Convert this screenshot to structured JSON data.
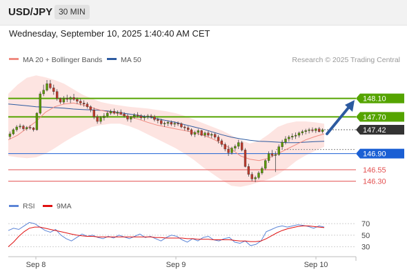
{
  "header": {
    "symbol": "USD/JPY",
    "timeframe": "30 MIN"
  },
  "timestamp": "Wednesday, September 10, 2025 1:40:40 AM CET",
  "legend": {
    "main": [
      {
        "label": "MA 20 + Bollinger Bands",
        "color": "#f08a80"
      },
      {
        "label": "MA 50",
        "color": "#2c5aa0"
      }
    ],
    "rsi": [
      {
        "label": "RSI",
        "color": "#5b84d6"
      },
      {
        "label": "9MA",
        "color": "#e01010"
      }
    ]
  },
  "credit": "Research © 2025 Trading Central",
  "colors": {
    "green": "#55a400",
    "blue": "#1a5fd4",
    "red": "#e35050",
    "arrow": "#2c5aa0",
    "up": "#5a9a00",
    "down": "#c0392b",
    "band": "#fde4e1"
  },
  "chart_data": {
    "type": "candlestick",
    "ylim": [
      146.04,
      148.74
    ],
    "xticks": [
      "Sep 8",
      "Sep 9",
      "Sep 10"
    ],
    "levels": [
      {
        "label": "148.10",
        "value": 148.1,
        "kind": "resistance"
      },
      {
        "label": "147.70",
        "value": 147.7,
        "kind": "resistance"
      },
      {
        "label": "147.42",
        "value": 147.42,
        "kind": "current"
      },
      {
        "label": "146.90",
        "value": 146.9,
        "kind": "support"
      },
      {
        "label": "146.55",
        "value": 146.55,
        "kind": "support"
      },
      {
        "label": "146.30",
        "value": 146.3,
        "kind": "support"
      }
    ],
    "ma20": [
      147.2,
      147.3,
      147.45,
      147.6,
      147.8,
      147.92,
      147.98,
      148.0,
      147.96,
      147.9,
      147.84,
      147.8,
      147.76,
      147.7,
      147.65,
      147.58,
      147.52,
      147.48,
      147.44,
      147.4,
      147.36,
      147.3,
      147.22,
      147.12,
      147.0,
      146.85,
      146.78,
      146.75,
      146.8,
      146.9,
      147.0,
      147.1,
      147.2,
      147.27,
      147.33
    ],
    "ma50": [
      147.98,
      147.96,
      147.94,
      147.92,
      147.91,
      147.9,
      147.89,
      147.87,
      147.86,
      147.85,
      147.84,
      147.82,
      147.79,
      147.76,
      147.73,
      147.7,
      147.66,
      147.62,
      147.58,
      147.53,
      147.48,
      147.43,
      147.37,
      147.31,
      147.26,
      147.22,
      147.19,
      147.17,
      147.16,
      147.15,
      147.14,
      147.14,
      147.15,
      147.16,
      147.17
    ],
    "bb_upper": [
      148.2,
      148.4,
      148.55,
      148.6,
      148.56,
      148.5,
      148.42,
      148.3,
      148.18,
      148.1,
      148.02,
      147.98,
      147.95,
      147.92,
      147.9,
      147.88,
      147.85,
      147.82,
      147.78,
      147.72,
      147.64,
      147.56,
      147.48,
      147.4,
      147.3,
      147.2,
      147.12,
      147.18,
      147.32,
      147.48,
      147.56,
      147.6,
      147.6,
      147.58,
      147.55
    ],
    "bb_lower": [
      146.85,
      146.82,
      146.8,
      146.82,
      146.9,
      147.02,
      147.15,
      147.27,
      147.38,
      147.48,
      147.52,
      147.55,
      147.55,
      147.5,
      147.42,
      147.32,
      147.22,
      147.12,
      147.02,
      146.9,
      146.76,
      146.6,
      146.46,
      146.32,
      146.2,
      146.18,
      146.22,
      146.28,
      146.34,
      146.44,
      146.58,
      146.74,
      146.86,
      146.96,
      147.05
    ],
    "ohlc": [
      [
        147.27,
        147.38,
        147.22,
        147.33
      ],
      [
        147.33,
        147.45,
        147.3,
        147.42
      ],
      [
        147.42,
        147.52,
        147.38,
        147.48
      ],
      [
        147.48,
        147.55,
        147.44,
        147.5
      ],
      [
        147.5,
        147.53,
        147.4,
        147.44
      ],
      [
        147.44,
        147.5,
        147.4,
        147.47
      ],
      [
        147.47,
        147.52,
        147.42,
        147.46
      ],
      [
        147.46,
        147.48,
        147.38,
        147.42
      ],
      [
        147.42,
        147.8,
        147.4,
        147.78
      ],
      [
        147.78,
        148.25,
        147.75,
        148.2
      ],
      [
        148.2,
        148.4,
        148.15,
        148.28
      ],
      [
        148.28,
        148.5,
        148.25,
        148.42
      ],
      [
        148.42,
        148.5,
        148.3,
        148.33
      ],
      [
        148.33,
        148.4,
        148.18,
        148.25
      ],
      [
        148.25,
        148.3,
        148.05,
        148.1
      ],
      [
        148.1,
        148.12,
        147.98,
        148.02
      ],
      [
        148.02,
        148.15,
        147.98,
        148.1
      ],
      [
        148.1,
        148.18,
        148.02,
        148.08
      ],
      [
        148.08,
        148.15,
        148.0,
        148.12
      ],
      [
        148.12,
        148.2,
        148.05,
        148.08
      ],
      [
        148.08,
        148.12,
        147.98,
        148.04
      ],
      [
        148.04,
        148.1,
        147.95,
        148.0
      ],
      [
        148.0,
        148.06,
        147.92,
        147.98
      ],
      [
        147.98,
        148.02,
        147.88,
        147.92
      ],
      [
        147.92,
        147.95,
        147.8,
        147.85
      ],
      [
        147.85,
        147.9,
        147.65,
        147.7
      ],
      [
        147.7,
        147.75,
        147.55,
        147.6
      ],
      [
        147.6,
        147.72,
        147.55,
        147.68
      ],
      [
        147.68,
        147.78,
        147.62,
        147.72
      ],
      [
        147.72,
        147.82,
        147.68,
        147.78
      ],
      [
        147.78,
        147.86,
        147.74,
        147.82
      ],
      [
        147.82,
        147.88,
        147.75,
        147.78
      ],
      [
        147.78,
        147.84,
        147.72,
        147.8
      ],
      [
        147.8,
        147.86,
        147.74,
        147.76
      ],
      [
        147.76,
        147.8,
        147.68,
        147.72
      ],
      [
        147.72,
        147.76,
        147.6,
        147.65
      ],
      [
        147.65,
        147.72,
        147.58,
        147.7
      ],
      [
        147.7,
        147.78,
        147.66,
        147.74
      ],
      [
        147.74,
        147.8,
        147.68,
        147.72
      ],
      [
        147.72,
        147.76,
        147.64,
        147.68
      ],
      [
        147.68,
        147.74,
        147.62,
        147.7
      ],
      [
        147.7,
        147.76,
        147.65,
        147.72
      ],
      [
        147.72,
        147.76,
        147.66,
        147.7
      ],
      [
        147.7,
        147.74,
        147.6,
        147.64
      ],
      [
        147.64,
        147.68,
        147.56,
        147.62
      ],
      [
        147.62,
        147.66,
        147.52,
        147.55
      ],
      [
        147.55,
        147.6,
        147.48,
        147.56
      ],
      [
        147.56,
        147.62,
        147.5,
        147.58
      ],
      [
        147.58,
        147.62,
        147.5,
        147.54
      ],
      [
        147.54,
        147.6,
        147.48,
        147.56
      ],
      [
        147.56,
        147.6,
        147.5,
        147.55
      ],
      [
        147.55,
        147.58,
        147.45,
        147.48
      ],
      [
        147.48,
        147.52,
        147.4,
        147.46
      ],
      [
        147.46,
        147.5,
        147.38,
        147.42
      ],
      [
        147.42,
        147.45,
        147.28,
        147.32
      ],
      [
        147.32,
        147.4,
        147.26,
        147.36
      ],
      [
        147.36,
        147.44,
        147.3,
        147.4
      ],
      [
        147.4,
        147.42,
        147.28,
        147.3
      ],
      [
        147.3,
        147.38,
        147.25,
        147.35
      ],
      [
        147.35,
        147.4,
        147.26,
        147.3
      ],
      [
        147.3,
        147.36,
        147.24,
        147.32
      ],
      [
        147.32,
        147.36,
        147.22,
        147.26
      ],
      [
        147.26,
        147.3,
        147.12,
        147.18
      ],
      [
        147.18,
        147.22,
        147.05,
        147.1
      ],
      [
        147.1,
        147.14,
        146.95,
        147.0
      ],
      [
        147.0,
        147.08,
        146.85,
        146.92
      ],
      [
        146.92,
        147.05,
        146.88,
        147.02
      ],
      [
        147.02,
        147.1,
        146.96,
        147.06
      ],
      [
        147.06,
        147.2,
        147.0,
        147.14
      ],
      [
        147.14,
        147.18,
        146.95,
        146.98
      ],
      [
        146.98,
        147.02,
        146.6,
        146.62
      ],
      [
        146.62,
        146.68,
        146.4,
        146.45
      ],
      [
        146.45,
        146.5,
        146.3,
        146.35
      ],
      [
        146.35,
        146.42,
        146.28,
        146.38
      ],
      [
        146.38,
        146.52,
        146.34,
        146.48
      ],
      [
        146.48,
        146.62,
        146.44,
        146.58
      ],
      [
        146.58,
        146.78,
        146.54,
        146.75
      ],
      [
        146.75,
        146.95,
        146.7,
        146.9
      ],
      [
        146.9,
        146.98,
        146.82,
        146.86
      ],
      [
        146.86,
        146.95,
        146.5,
        146.88
      ],
      [
        146.88,
        147.1,
        146.85,
        147.05
      ],
      [
        147.05,
        147.2,
        147.0,
        147.15
      ],
      [
        147.15,
        147.28,
        147.1,
        147.22
      ],
      [
        147.22,
        147.3,
        147.16,
        147.26
      ],
      [
        147.26,
        147.34,
        147.2,
        147.28
      ],
      [
        147.28,
        147.36,
        147.22,
        147.3
      ],
      [
        147.3,
        147.38,
        147.25,
        147.35
      ],
      [
        147.35,
        147.42,
        147.3,
        147.38
      ],
      [
        147.38,
        147.44,
        147.32,
        147.4
      ],
      [
        147.4,
        147.46,
        147.34,
        147.42
      ],
      [
        147.42,
        147.47,
        147.36,
        147.4
      ],
      [
        147.4,
        147.46,
        147.35,
        147.44
      ],
      [
        147.44,
        147.48,
        147.36,
        147.38
      ],
      [
        147.38,
        147.45,
        147.34,
        147.42
      ]
    ],
    "rsi": {
      "ticks": [
        30,
        50,
        70
      ],
      "ylim": [
        20,
        82
      ],
      "rsi": [
        58,
        62,
        60,
        66,
        72,
        70,
        64,
        58,
        55,
        60,
        50,
        44,
        40,
        46,
        52,
        48,
        50,
        46,
        44,
        48,
        45,
        50,
        47,
        44,
        48,
        52,
        46,
        48,
        44,
        40,
        46,
        50,
        48,
        42,
        38,
        44,
        40,
        46,
        48,
        42,
        40,
        44,
        46,
        38,
        36,
        40,
        32,
        34,
        40,
        56,
        60,
        64,
        66,
        64,
        66,
        68,
        67,
        65,
        62,
        66,
        64
      ],
      "ma": [
        30,
        38,
        48,
        56,
        62,
        64,
        64,
        62,
        60,
        58,
        56,
        54,
        52,
        50,
        49,
        48,
        48,
        47,
        47,
        47,
        47,
        47,
        47,
        47,
        47,
        47,
        47,
        47,
        46,
        46,
        45,
        45,
        45,
        45,
        44,
        44,
        43,
        43,
        43,
        42,
        42,
        42,
        42,
        41,
        40,
        40,
        39,
        39,
        40,
        44,
        49,
        54,
        58,
        61,
        63,
        65,
        66,
        66,
        65,
        64,
        63
      ]
    }
  }
}
